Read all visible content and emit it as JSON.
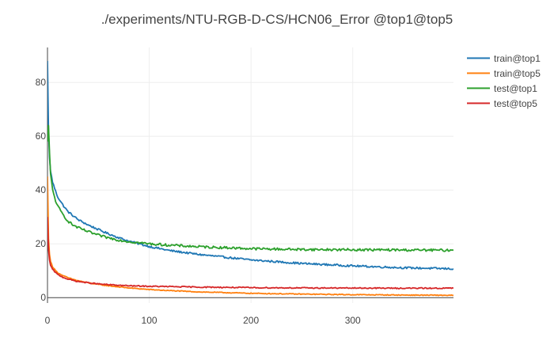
{
  "chart_data": {
    "type": "line",
    "title": "./experiments/NTU-RGB-D-CS/HCN06_Error @top1@top5",
    "xlabel": "",
    "ylabel": "",
    "xlim": [
      0,
      399
    ],
    "ylim": [
      -2,
      93
    ],
    "x_ticks": [
      0,
      100,
      200,
      300
    ],
    "y_ticks": [
      0,
      20,
      40,
      60,
      80
    ],
    "grid": true,
    "legend_position": "top-right",
    "series": [
      {
        "name": "train@top1",
        "color": "#1f77b4",
        "x": [
          0,
          1,
          2,
          3,
          5,
          8,
          10,
          15,
          20,
          25,
          30,
          40,
          50,
          60,
          70,
          80,
          100,
          120,
          150,
          180,
          200,
          250,
          300,
          350,
          399
        ],
        "y": [
          88,
          62,
          52,
          47,
          43,
          39.5,
          37.5,
          34.5,
          32,
          30.5,
          29,
          27,
          25.3,
          23.7,
          22.3,
          21,
          19,
          17.5,
          16,
          14.8,
          14,
          12.7,
          11.8,
          11.1,
          10.7
        ]
      },
      {
        "name": "train@top5",
        "color": "#ff7f0e",
        "x": [
          0,
          1,
          2,
          3,
          5,
          8,
          10,
          15,
          20,
          25,
          30,
          40,
          50,
          60,
          70,
          80,
          100,
          120,
          150,
          180,
          200,
          250,
          300,
          350,
          399
        ],
        "y": [
          45,
          22,
          16,
          13.5,
          11.5,
          10,
          9.3,
          8.2,
          7.4,
          6.8,
          6.3,
          5.5,
          4.9,
          4.4,
          4,
          3.6,
          3,
          2.6,
          2.1,
          1.8,
          1.6,
          1.3,
          1.1,
          0.95,
          0.85
        ]
      },
      {
        "name": "test@top1",
        "color": "#2ca02c",
        "x": [
          0,
          1,
          2,
          3,
          5,
          8,
          10,
          15,
          20,
          25,
          30,
          40,
          50,
          60,
          70,
          80,
          100,
          120,
          150,
          180,
          200,
          250,
          300,
          350,
          399
        ],
        "y": [
          58,
          64,
          54,
          46,
          40,
          36,
          34,
          31,
          28.5,
          27,
          26,
          24.5,
          23.2,
          22.2,
          21.4,
          20.8,
          20,
          19.5,
          18.9,
          18.5,
          18.2,
          17.9,
          17.8,
          17.7,
          17.6
        ]
      },
      {
        "name": "test@top5",
        "color": "#d62728",
        "x": [
          0,
          1,
          2,
          3,
          5,
          8,
          10,
          15,
          20,
          25,
          30,
          40,
          50,
          60,
          70,
          80,
          100,
          120,
          150,
          180,
          200,
          250,
          300,
          350,
          399
        ],
        "y": [
          30,
          18,
          14,
          12,
          10.5,
          9.3,
          8.6,
          7.6,
          6.9,
          6.4,
          6,
          5.5,
          5.1,
          4.8,
          4.6,
          4.4,
          4.2,
          4.1,
          3.9,
          3.8,
          3.7,
          3.6,
          3.55,
          3.5,
          3.5
        ]
      }
    ]
  }
}
